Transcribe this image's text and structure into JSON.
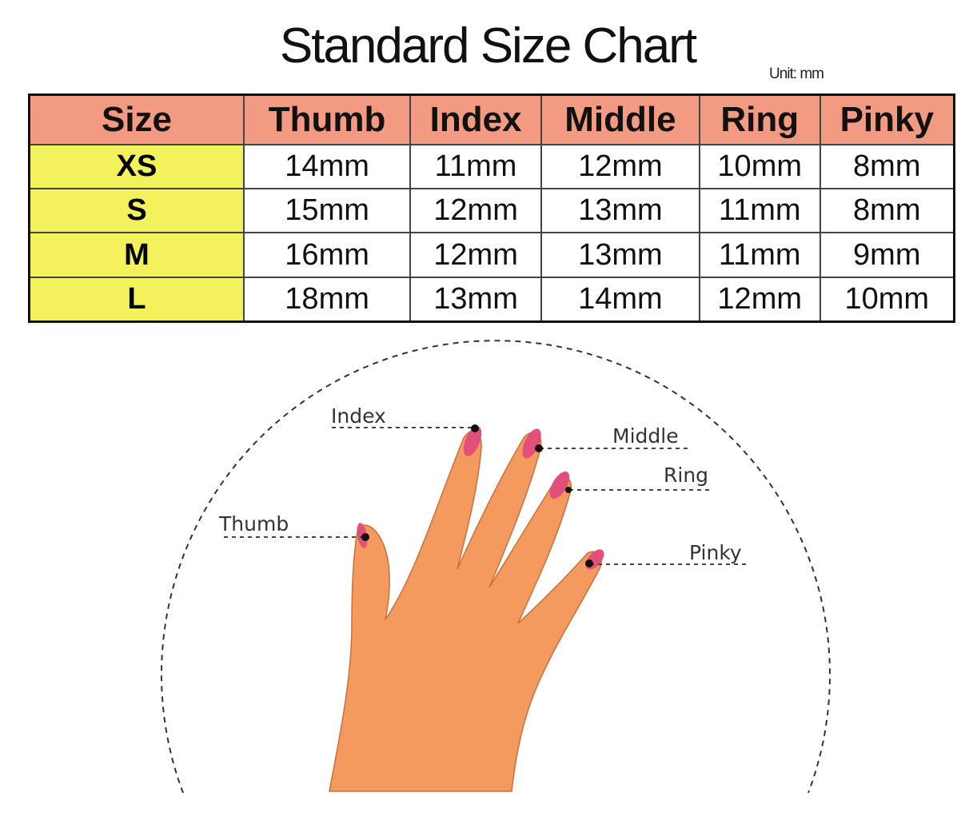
{
  "title": "Standard Size Chart",
  "unit": "Unit: mm",
  "table": {
    "headers": [
      "Size",
      "Thumb",
      "Index",
      "Middle",
      "Ring",
      "Pinky"
    ],
    "rows": [
      {
        "size": "XS",
        "values": [
          "14mm",
          "11mm",
          "12mm",
          "10mm",
          "8mm"
        ]
      },
      {
        "size": "S",
        "values": [
          "15mm",
          "12mm",
          "13mm",
          "11mm",
          "8mm"
        ]
      },
      {
        "size": "M",
        "values": [
          "16mm",
          "12mm",
          "13mm",
          "11mm",
          "9mm"
        ]
      },
      {
        "size": "L",
        "values": [
          "18mm",
          "13mm",
          "14mm",
          "12mm",
          "10mm"
        ]
      }
    ]
  },
  "diagram": {
    "labels": {
      "index": "Index",
      "middle": "Middle",
      "ring": "Ring",
      "thumb": "Thumb",
      "pinky": "Pinky"
    }
  },
  "colors": {
    "header": "#f29a82",
    "size_column": "#f4f25c",
    "skin": "#f59a5e",
    "nail": "#e2507a"
  }
}
